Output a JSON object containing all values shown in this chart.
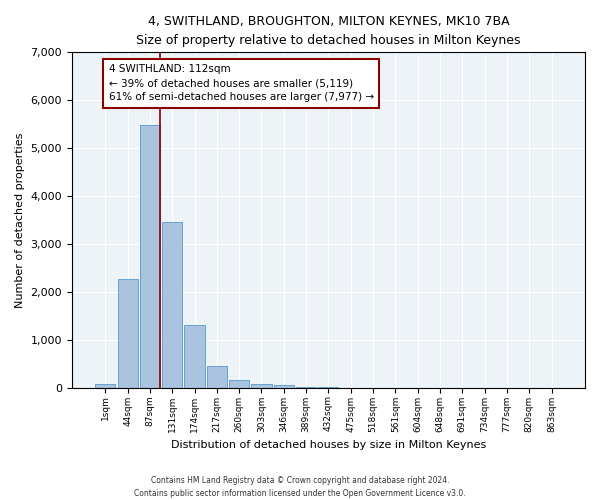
{
  "title": "4, SWITHLAND, BROUGHTON, MILTON KEYNES, MK10 7BA",
  "subtitle": "Size of property relative to detached houses in Milton Keynes",
  "xlabel": "Distribution of detached houses by size in Milton Keynes",
  "ylabel": "Number of detached properties",
  "footnote1": "Contains HM Land Registry data © Crown copyright and database right 2024.",
  "footnote2": "Contains public sector information licensed under the Open Government Licence v3.0.",
  "annotation_title": "4 SWITHLAND: 112sqm",
  "annotation_line1": "← 39% of detached houses are smaller (5,119)",
  "annotation_line2": "61% of semi-detached houses are larger (7,977) →",
  "bar_labels": [
    "1sqm",
    "44sqm",
    "87sqm",
    "131sqm",
    "174sqm",
    "217sqm",
    "260sqm",
    "303sqm",
    "346sqm",
    "389sqm",
    "432sqm",
    "475sqm",
    "518sqm",
    "561sqm",
    "604sqm",
    "648sqm",
    "691sqm",
    "734sqm",
    "777sqm",
    "820sqm",
    "863sqm"
  ],
  "bar_values": [
    75,
    2270,
    5480,
    3450,
    1310,
    460,
    160,
    85,
    45,
    20,
    5,
    0,
    0,
    0,
    0,
    0,
    0,
    0,
    0,
    0,
    0
  ],
  "bar_color": "#aac4e0",
  "bar_edge_color": "#5599cc",
  "vline_color": "#8b0000",
  "annotation_box_color": "#8b0000",
  "background_color": "#eef3f8",
  "ylim": [
    0,
    7000
  ],
  "yticks": [
    0,
    1000,
    2000,
    3000,
    4000,
    5000,
    6000,
    7000
  ]
}
